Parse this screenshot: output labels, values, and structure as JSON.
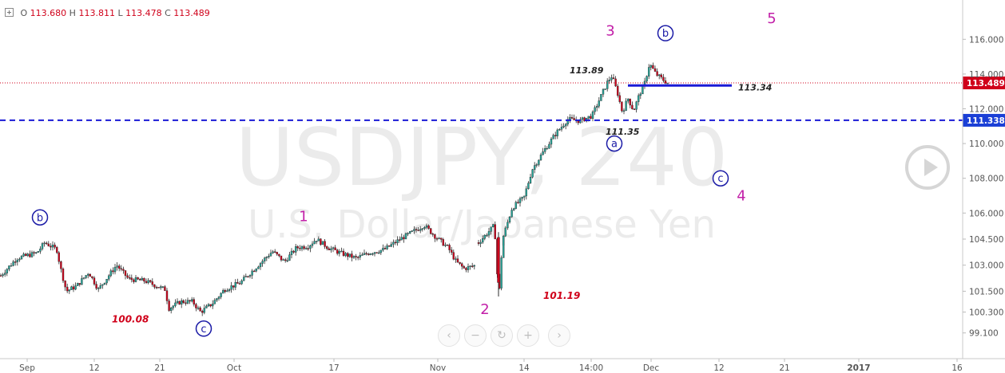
{
  "header": {
    "ohlc": [
      {
        "key": "O",
        "value": "113.680"
      },
      {
        "key": "H",
        "value": "113.811"
      },
      {
        "key": "L",
        "value": "113.478"
      },
      {
        "key": "C",
        "value": "113.489"
      }
    ]
  },
  "watermark": {
    "symbol": "USDJPY, 240",
    "description": "U.S. Dollar/Japanese Yen"
  },
  "colors": {
    "up_candle": "#26a69a",
    "down_candle": "#d0021b",
    "wave_blue": "#1a1aa6",
    "wave_magenta": "#c21fa8",
    "price_red": "#d0021b",
    "level_line": "#1a1ad6"
  },
  "chart_data": {
    "type": "candlestick",
    "symbol": "USDJPY",
    "timeframe": "240",
    "ylim": [
      99.0,
      116.9
    ],
    "y_ticks": [
      "99.100",
      "100.300",
      "101.500",
      "103.000",
      "104.500",
      "106.000",
      "108.000",
      "110.000",
      "112.000",
      "114.000",
      "116.000"
    ],
    "x_ticks": [
      "Sep",
      "12",
      "21",
      "Oct",
      "17",
      "Nov",
      "14",
      "14:00",
      "Dec",
      "12",
      "21",
      "2017",
      "16"
    ],
    "last_price": "113.489",
    "path": [
      [
        0,
        102.4
      ],
      [
        20,
        103.4
      ],
      [
        45,
        103.7
      ],
      [
        55,
        104.3
      ],
      [
        70,
        103.9
      ],
      [
        75,
        102.8
      ],
      [
        82,
        101.5
      ],
      [
        95,
        101.8
      ],
      [
        110,
        102.6
      ],
      [
        122,
        101.6
      ],
      [
        135,
        102.4
      ],
      [
        145,
        103.0
      ],
      [
        160,
        102.2
      ],
      [
        180,
        102.1
      ],
      [
        200,
        101.7
      ],
      [
        206,
        101.6
      ],
      [
        210,
        100.5
      ],
      [
        225,
        100.9
      ],
      [
        240,
        100.9
      ],
      [
        250,
        100.3
      ],
      [
        265,
        100.8
      ],
      [
        280,
        101.6
      ],
      [
        300,
        102.0
      ],
      [
        320,
        102.9
      ],
      [
        340,
        103.8
      ],
      [
        355,
        103.2
      ],
      [
        370,
        104.0
      ],
      [
        385,
        104.1
      ],
      [
        395,
        104.5
      ],
      [
        410,
        104.0
      ],
      [
        425,
        103.7
      ],
      [
        445,
        103.4
      ],
      [
        460,
        103.7
      ],
      [
        480,
        103.9
      ],
      [
        500,
        104.5
      ],
      [
        515,
        104.9
      ],
      [
        530,
        105.3
      ],
      [
        545,
        104.6
      ],
      [
        560,
        104.0
      ],
      [
        570,
        103.2
      ],
      [
        580,
        102.8
      ],
      [
        595,
        103.0
      ]
    ],
    "path2": [
      [
        598,
        104.3
      ],
      [
        610,
        104.9
      ],
      [
        618,
        105.3
      ],
      [
        622,
        102.0
      ],
      [
        624,
        101.6
      ],
      [
        628,
        104.5
      ],
      [
        640,
        106.3
      ],
      [
        655,
        106.9
      ],
      [
        665,
        108.5
      ],
      [
        680,
        109.6
      ],
      [
        695,
        110.6
      ],
      [
        710,
        111.4
      ],
      [
        725,
        111.3
      ],
      [
        740,
        111.6
      ],
      [
        750,
        112.6
      ],
      [
        760,
        113.6
      ],
      [
        765,
        113.89
      ],
      [
        772,
        112.9
      ],
      [
        778,
        111.8
      ],
      [
        785,
        112.6
      ],
      [
        792,
        111.9
      ],
      [
        800,
        112.9
      ],
      [
        805,
        113.3
      ],
      [
        812,
        114.6
      ],
      [
        820,
        114.0
      ],
      [
        828,
        113.7
      ],
      [
        835,
        113.48
      ]
    ],
    "levels": [
      {
        "name": "horizontal-level-11134",
        "price": 113.34,
        "label": "113.34",
        "style": "solid"
      },
      {
        "name": "dashed-level-111338",
        "price": 111.338,
        "label": "111.338",
        "style": "dashed"
      },
      {
        "name": "last-price-line",
        "price": 113.489,
        "label": "113.489",
        "style": "dotted"
      }
    ],
    "price_annotations": [
      {
        "text": "113.89",
        "x": 713,
        "price": 114.05
      },
      {
        "text": "111.35",
        "x": 758,
        "price": 110.5
      },
      {
        "text": "100.08",
        "x": 140,
        "price": 99.7
      },
      {
        "text": "101.19",
        "x": 680,
        "price": 101.05
      }
    ],
    "wave_labels_blue": [
      {
        "text": "b",
        "x": 50,
        "price": 105.75
      },
      {
        "text": "c",
        "x": 255,
        "price": 99.35
      },
      {
        "text": "a",
        "x": 769,
        "price": 110.0
      },
      {
        "text": "b",
        "x": 833,
        "price": 116.35
      },
      {
        "text": "c",
        "x": 902,
        "price": 108.0
      }
    ],
    "wave_labels_magenta": [
      {
        "text": "1",
        "x": 380,
        "price": 105.85
      },
      {
        "text": "2",
        "x": 607,
        "price": 100.5
      },
      {
        "text": "3",
        "x": 764,
        "price": 116.55
      },
      {
        "text": "4",
        "x": 928,
        "price": 107.05
      },
      {
        "text": "5",
        "x": 966,
        "price": 117.25
      }
    ]
  },
  "controls": {
    "zoom_buttons": [
      {
        "name": "scroll-left-button",
        "glyph": "‹"
      },
      {
        "name": "zoom-out-button",
        "glyph": "−"
      },
      {
        "name": "reset-button",
        "glyph": "↻"
      },
      {
        "name": "zoom-in-button",
        "glyph": "+"
      },
      {
        "name": "scroll-right-button",
        "glyph": "›"
      }
    ]
  }
}
